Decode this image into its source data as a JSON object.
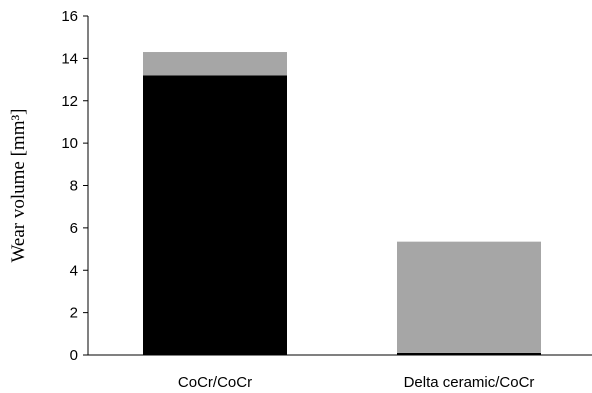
{
  "chart_data": {
    "type": "bar",
    "stacked": true,
    "categories": [
      "CoCr/CoCr",
      "Delta ceramic/CoCr"
    ],
    "series": [
      {
        "values": [
          13.2,
          0.1
        ],
        "color": "#000000"
      },
      {
        "values": [
          1.1,
          5.25
        ],
        "color": "#a6a6a6"
      }
    ],
    "title": "",
    "xlabel": "",
    "ylabel": "Wear volume [mm³]",
    "ylim": [
      0,
      16
    ],
    "yticks": [
      0,
      2,
      4,
      6,
      8,
      10,
      12,
      14,
      16
    ],
    "grid": false,
    "legend": "none"
  }
}
